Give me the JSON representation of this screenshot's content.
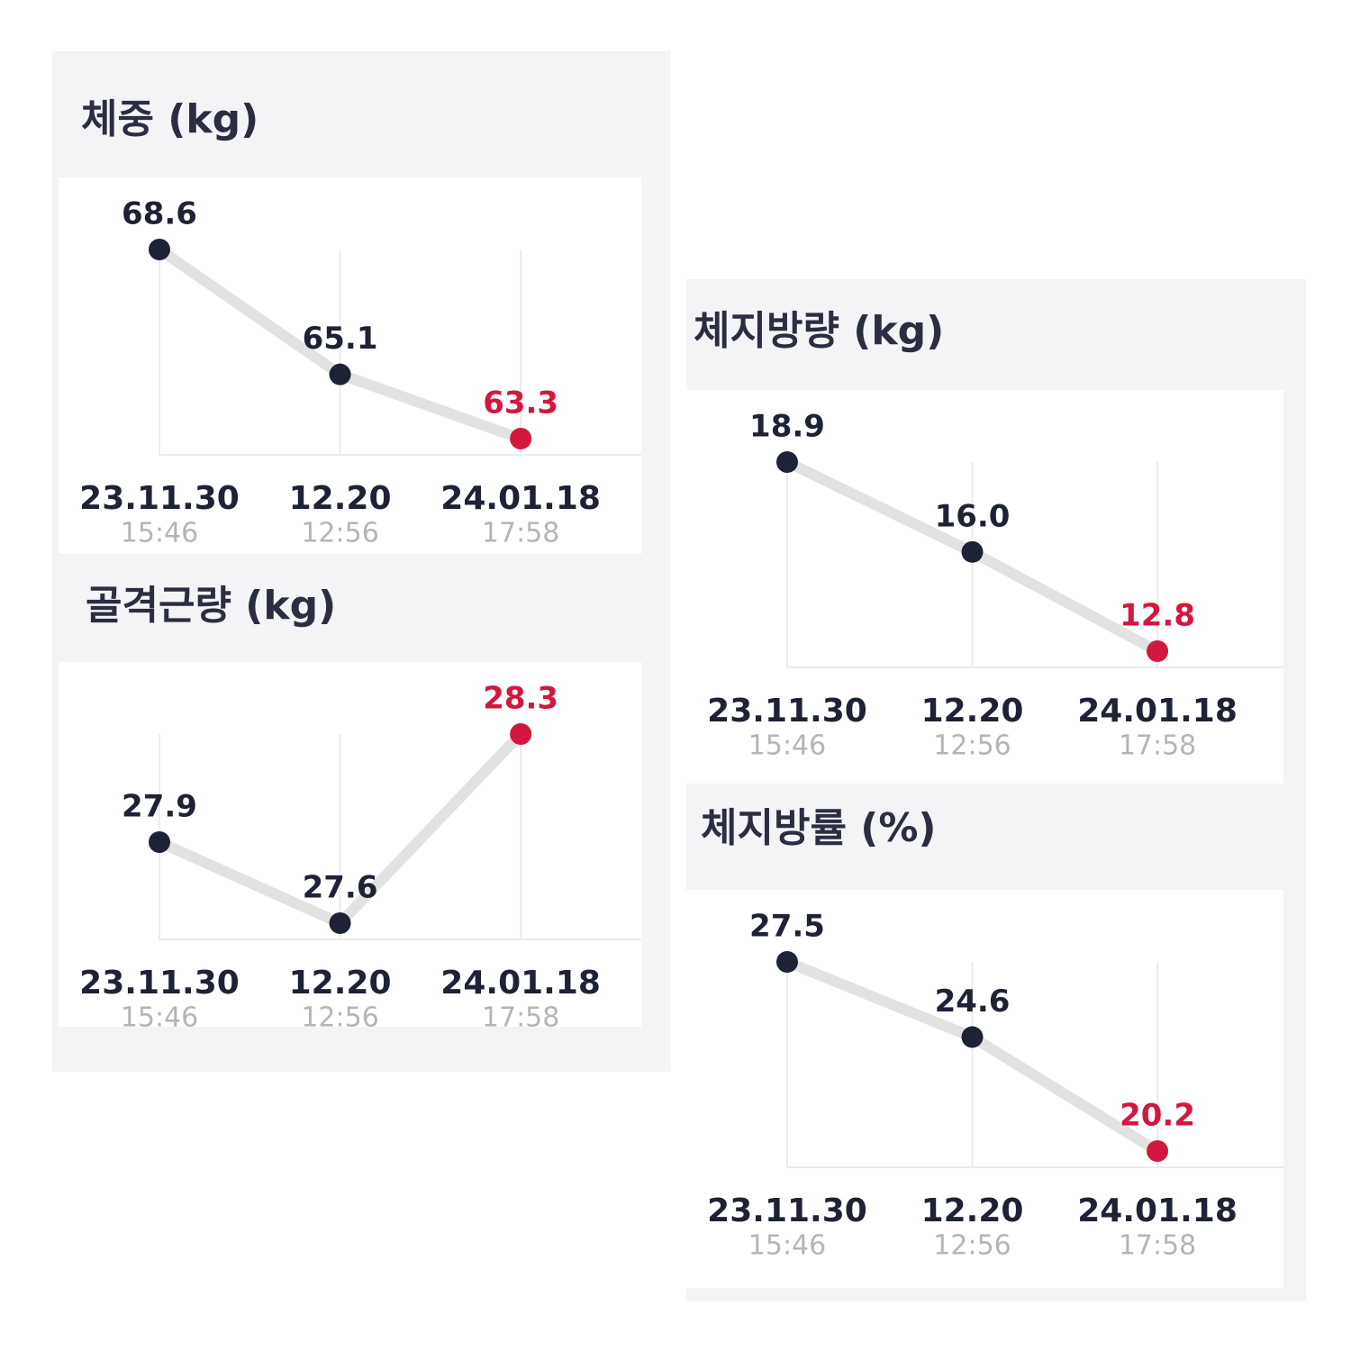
{
  "chart_data": [
    {
      "type": "line",
      "title": "체중 (kg)",
      "categories": [
        "23.11.30",
        "12.20",
        "24.01.18"
      ],
      "category_times": [
        "15:46",
        "12:56",
        "17:58"
      ],
      "values": [
        68.6,
        65.1,
        63.3
      ],
      "point_colors": [
        "#1e2235",
        "#1e2235",
        "#d3173d"
      ],
      "line_color": "#e2e2e2"
    },
    {
      "type": "line",
      "title": "골격근량 (kg)",
      "categories": [
        "23.11.30",
        "12.20",
        "24.01.18"
      ],
      "category_times": [
        "15:46",
        "12:56",
        "17:58"
      ],
      "values": [
        27.9,
        27.6,
        28.3
      ],
      "point_colors": [
        "#1e2235",
        "#1e2235",
        "#d3173d"
      ],
      "line_color": "#e2e2e2"
    },
    {
      "type": "line",
      "title": "체지방량 (kg)",
      "categories": [
        "23.11.30",
        "12.20",
        "24.01.18"
      ],
      "category_times": [
        "15:46",
        "12:56",
        "17:58"
      ],
      "values": [
        18.9,
        16.0,
        12.8
      ],
      "value_labels": [
        "18.9",
        "16.0",
        "12.8"
      ],
      "point_colors": [
        "#1e2235",
        "#1e2235",
        "#d3173d"
      ],
      "line_color": "#e2e2e2"
    },
    {
      "type": "line",
      "title": "체지방률 (%)",
      "categories": [
        "23.11.30",
        "12.20",
        "24.01.18"
      ],
      "category_times": [
        "15:46",
        "12:56",
        "17:58"
      ],
      "values": [
        27.5,
        24.6,
        20.2
      ],
      "point_colors": [
        "#1e2235",
        "#1e2235",
        "#d3173d"
      ],
      "line_color": "#e2e2e2"
    }
  ]
}
